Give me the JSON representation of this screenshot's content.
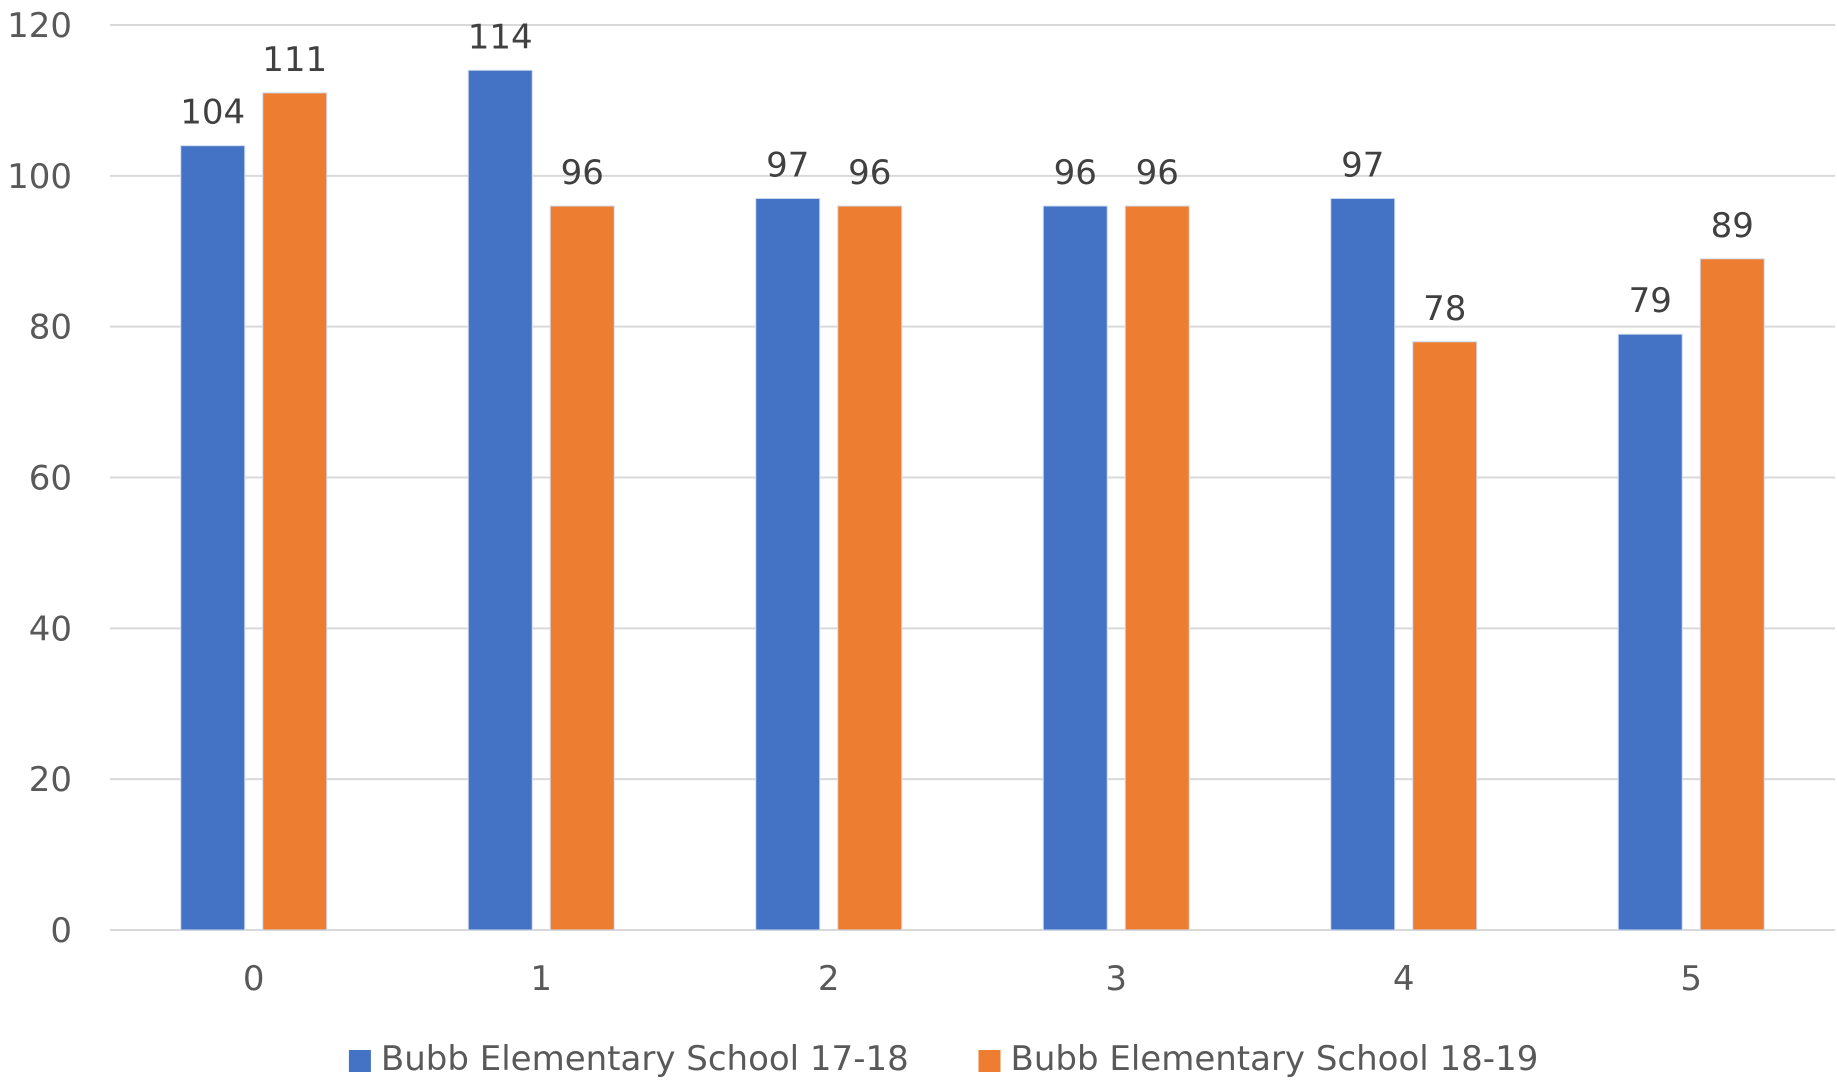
{
  "chart_data": {
    "type": "bar",
    "categories": [
      "0",
      "1",
      "2",
      "3",
      "4",
      "5"
    ],
    "series": [
      {
        "name": "Bubb Elementary School 17-18",
        "color": "#4472c4",
        "values": [
          104,
          114,
          97,
          96,
          97,
          79
        ]
      },
      {
        "name": "Bubb Elementary School 18-19",
        "color": "#ed7d31",
        "values": [
          111,
          96,
          96,
          96,
          78,
          89
        ]
      }
    ],
    "title": "",
    "xlabel": "",
    "ylabel": "",
    "ylim": [
      0,
      120
    ],
    "yticks": [
      0,
      20,
      40,
      60,
      80,
      100,
      120
    ],
    "grid": true,
    "legend_position": "bottom",
    "data_labels": true
  }
}
